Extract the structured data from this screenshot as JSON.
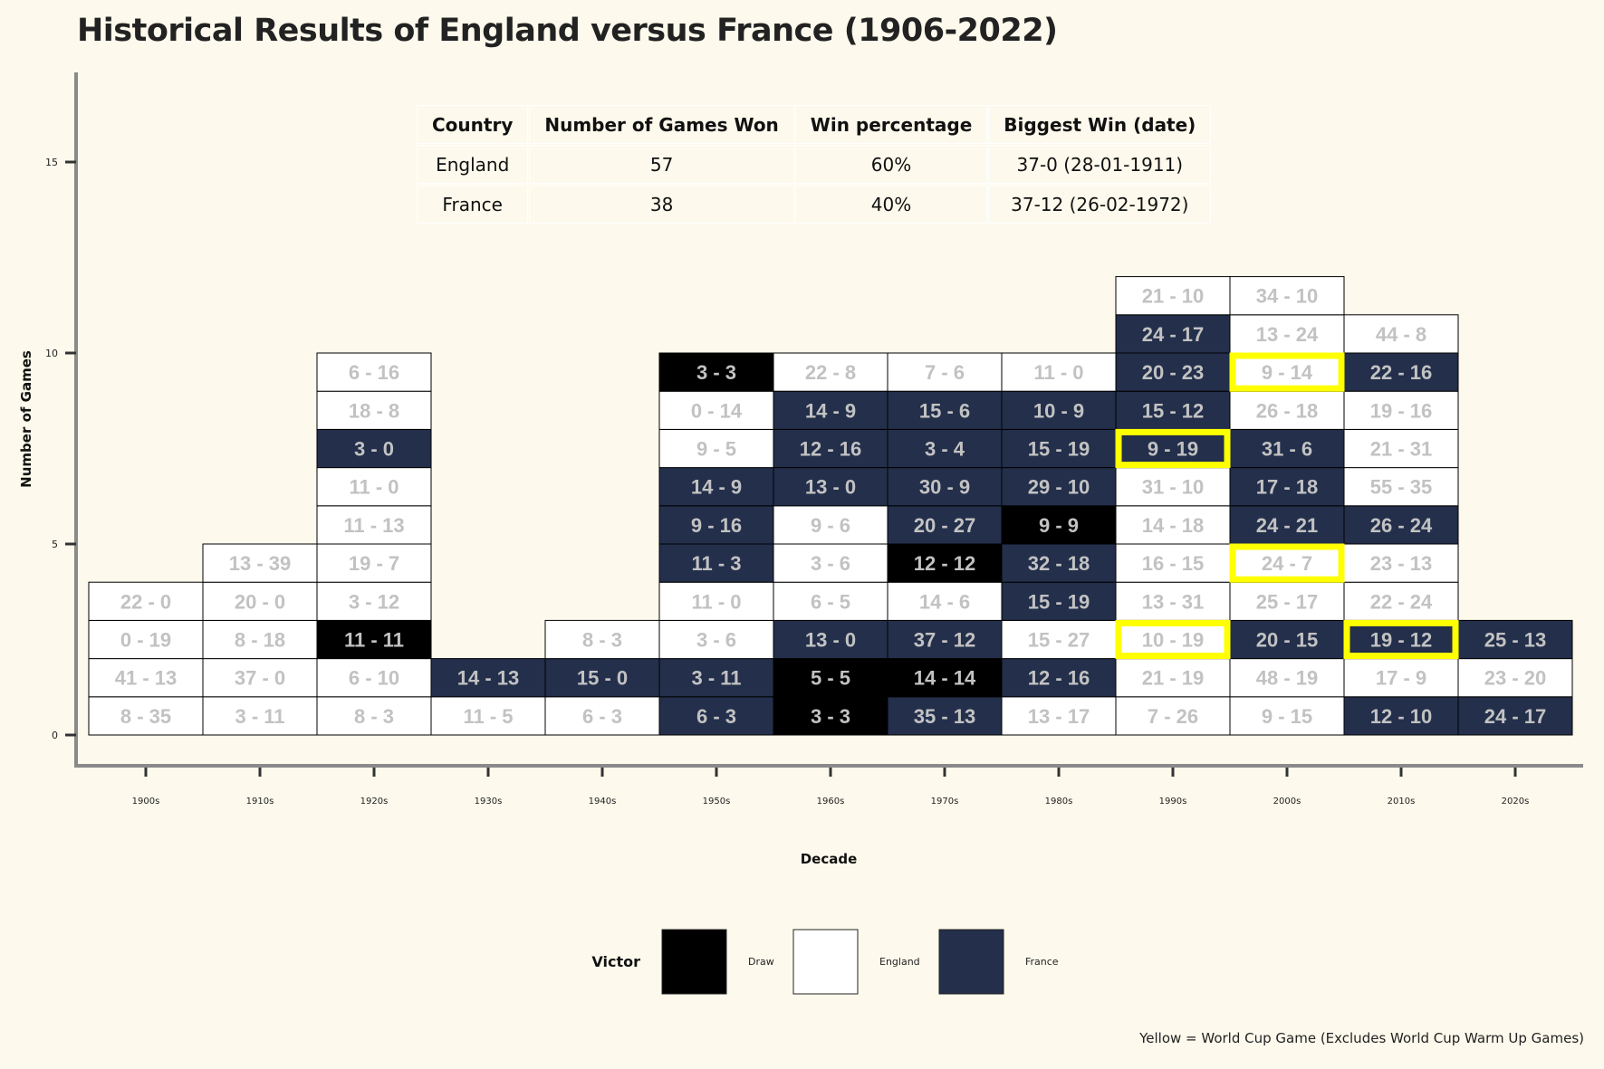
{
  "title": "Historical Results of England versus France (1906-2022)",
  "caption": "Yellow = World Cup Game (Excludes World Cup Warm Up Games)",
  "summary_table": {
    "headers": [
      "Country",
      "Number of Games Won",
      "Win percentage",
      "Biggest Win (date)"
    ],
    "rows": [
      [
        "England",
        "57",
        "60%",
        "37-0 (28-01-1911)"
      ],
      [
        "France",
        "38",
        "40%",
        "37-12 (26-02-1972)"
      ]
    ]
  },
  "chart_data": {
    "type": "stacked tile chart",
    "xlabel": "Decade",
    "ylabel": "Number of Games",
    "y_ticks": [
      0,
      5,
      10,
      15
    ],
    "ylim": [
      0,
      18
    ],
    "categories": [
      "1900s",
      "1910s",
      "1920s",
      "1930s",
      "1940s",
      "1950s",
      "1960s",
      "1970s",
      "1980s",
      "1990s",
      "2000s",
      "2010s",
      "2020s"
    ],
    "colors": {
      "Draw": "#000000",
      "England": "#ffffff",
      "France": "#232f4b",
      "world_cup_outline": "#ffff00",
      "label_light": "#c2c2c2",
      "label_dark": "#c2c2c2"
    },
    "legend": {
      "title": "Victor",
      "position": "bottom",
      "entries": [
        "Draw",
        "England",
        "France"
      ]
    },
    "decades": [
      {
        "decade": "1900s",
        "games": [
          {
            "score": "8 - 35",
            "victor": "England",
            "world_cup": false
          },
          {
            "score": "41 - 13",
            "victor": "England",
            "world_cup": false
          },
          {
            "score": "0 - 19",
            "victor": "England",
            "world_cup": false
          },
          {
            "score": "22 - 0",
            "victor": "England",
            "world_cup": false
          }
        ]
      },
      {
        "decade": "1910s",
        "games": [
          {
            "score": "3 - 11",
            "victor": "England",
            "world_cup": false
          },
          {
            "score": "37 - 0",
            "victor": "England",
            "world_cup": false
          },
          {
            "score": "8 - 18",
            "victor": "England",
            "world_cup": false
          },
          {
            "score": "20 - 0",
            "victor": "England",
            "world_cup": false
          },
          {
            "score": "13 - 39",
            "victor": "England",
            "world_cup": false
          }
        ]
      },
      {
        "decade": "1920s",
        "games": [
          {
            "score": "8 - 3",
            "victor": "England",
            "world_cup": false
          },
          {
            "score": "6 - 10",
            "victor": "England",
            "world_cup": false
          },
          {
            "score": "11 - 11",
            "victor": "Draw",
            "world_cup": false
          },
          {
            "score": "3 - 12",
            "victor": "England",
            "world_cup": false
          },
          {
            "score": "19 - 7",
            "victor": "England",
            "world_cup": false
          },
          {
            "score": "11 - 13",
            "victor": "England",
            "world_cup": false
          },
          {
            "score": "11 - 0",
            "victor": "England",
            "world_cup": false
          },
          {
            "score": "3 - 0",
            "victor": "France",
            "world_cup": false
          },
          {
            "score": "18 - 8",
            "victor": "England",
            "world_cup": false
          },
          {
            "score": "6 - 16",
            "victor": "England",
            "world_cup": false
          }
        ]
      },
      {
        "decade": "1930s",
        "games": [
          {
            "score": "11 - 5",
            "victor": "England",
            "world_cup": false
          },
          {
            "score": "14 - 13",
            "victor": "France",
            "world_cup": false
          }
        ]
      },
      {
        "decade": "1940s",
        "games": [
          {
            "score": "6 - 3",
            "victor": "England",
            "world_cup": false
          },
          {
            "score": "15 - 0",
            "victor": "France",
            "world_cup": false
          },
          {
            "score": "8 - 3",
            "victor": "England",
            "world_cup": false
          }
        ]
      },
      {
        "decade": "1950s",
        "games": [
          {
            "score": "6 - 3",
            "victor": "France",
            "world_cup": false
          },
          {
            "score": "3 - 11",
            "victor": "France",
            "world_cup": false
          },
          {
            "score": "3 - 6",
            "victor": "England",
            "world_cup": false
          },
          {
            "score": "11 - 0",
            "victor": "England",
            "world_cup": false
          },
          {
            "score": "11 - 3",
            "victor": "France",
            "world_cup": false
          },
          {
            "score": "9 - 16",
            "victor": "France",
            "world_cup": false
          },
          {
            "score": "14 - 9",
            "victor": "France",
            "world_cup": false
          },
          {
            "score": "9 - 5",
            "victor": "England",
            "world_cup": false
          },
          {
            "score": "0 - 14",
            "victor": "England",
            "world_cup": false
          },
          {
            "score": "3 - 3",
            "victor": "Draw",
            "world_cup": false
          }
        ]
      },
      {
        "decade": "1960s",
        "games": [
          {
            "score": "3 - 3",
            "victor": "Draw",
            "world_cup": false
          },
          {
            "score": "5 - 5",
            "victor": "Draw",
            "world_cup": false
          },
          {
            "score": "13 - 0",
            "victor": "France",
            "world_cup": false
          },
          {
            "score": "6 - 5",
            "victor": "England",
            "world_cup": false
          },
          {
            "score": "3 - 6",
            "victor": "England",
            "world_cup": false
          },
          {
            "score": "9 - 6",
            "victor": "England",
            "world_cup": false
          },
          {
            "score": "13 - 0",
            "victor": "France",
            "world_cup": false
          },
          {
            "score": "12 - 16",
            "victor": "France",
            "world_cup": false
          },
          {
            "score": "14 - 9",
            "victor": "France",
            "world_cup": false
          },
          {
            "score": "22 - 8",
            "victor": "England",
            "world_cup": false
          }
        ]
      },
      {
        "decade": "1970s",
        "games": [
          {
            "score": "35 - 13",
            "victor": "France",
            "world_cup": false
          },
          {
            "score": "14 - 14",
            "victor": "Draw",
            "world_cup": false
          },
          {
            "score": "37 - 12",
            "victor": "France",
            "world_cup": false
          },
          {
            "score": "14 - 6",
            "victor": "England",
            "world_cup": false
          },
          {
            "score": "12 - 12",
            "victor": "Draw",
            "world_cup": false
          },
          {
            "score": "20 - 27",
            "victor": "France",
            "world_cup": false
          },
          {
            "score": "30 - 9",
            "victor": "France",
            "world_cup": false
          },
          {
            "score": "3 - 4",
            "victor": "France",
            "world_cup": false
          },
          {
            "score": "15 - 6",
            "victor": "France",
            "world_cup": false
          },
          {
            "score": "7 - 6",
            "victor": "England",
            "world_cup": false
          }
        ]
      },
      {
        "decade": "1980s",
        "games": [
          {
            "score": "13 - 17",
            "victor": "England",
            "world_cup": false
          },
          {
            "score": "12 - 16",
            "victor": "France",
            "world_cup": false
          },
          {
            "score": "15 - 27",
            "victor": "England",
            "world_cup": false
          },
          {
            "score": "15 - 19",
            "victor": "France",
            "world_cup": false
          },
          {
            "score": "32 - 18",
            "victor": "France",
            "world_cup": false
          },
          {
            "score": "9 - 9",
            "victor": "Draw",
            "world_cup": false
          },
          {
            "score": "29 - 10",
            "victor": "France",
            "world_cup": false
          },
          {
            "score": "15 - 19",
            "victor": "France",
            "world_cup": false
          },
          {
            "score": "10 - 9",
            "victor": "France",
            "world_cup": false
          },
          {
            "score": "11 - 0",
            "victor": "England",
            "world_cup": false
          }
        ]
      },
      {
        "decade": "1990s",
        "games": [
          {
            "score": "7 - 26",
            "victor": "England",
            "world_cup": false
          },
          {
            "score": "21 - 19",
            "victor": "England",
            "world_cup": false
          },
          {
            "score": "10 - 19",
            "victor": "England",
            "world_cup": true
          },
          {
            "score": "13 - 31",
            "victor": "England",
            "world_cup": false
          },
          {
            "score": "16 - 15",
            "victor": "England",
            "world_cup": false
          },
          {
            "score": "14 - 18",
            "victor": "England",
            "world_cup": false
          },
          {
            "score": "31 - 10",
            "victor": "England",
            "world_cup": false
          },
          {
            "score": "9 - 19",
            "victor": "France",
            "world_cup": true
          },
          {
            "score": "15 - 12",
            "victor": "France",
            "world_cup": false
          },
          {
            "score": "20 - 23",
            "victor": "France",
            "world_cup": false
          },
          {
            "score": "24 - 17",
            "victor": "France",
            "world_cup": false
          },
          {
            "score": "21 - 10",
            "victor": "England",
            "world_cup": false
          }
        ]
      },
      {
        "decade": "2000s",
        "games": [
          {
            "score": "9 - 15",
            "victor": "England",
            "world_cup": false
          },
          {
            "score": "48 - 19",
            "victor": "England",
            "world_cup": false
          },
          {
            "score": "20 - 15",
            "victor": "France",
            "world_cup": false
          },
          {
            "score": "25 - 17",
            "victor": "England",
            "world_cup": false
          },
          {
            "score": "24 - 7",
            "victor": "England",
            "world_cup": true
          },
          {
            "score": "24 - 21",
            "victor": "France",
            "world_cup": false
          },
          {
            "score": "17 - 18",
            "victor": "France",
            "world_cup": false
          },
          {
            "score": "31 - 6",
            "victor": "France",
            "world_cup": false
          },
          {
            "score": "26 - 18",
            "victor": "England",
            "world_cup": false
          },
          {
            "score": "9 - 14",
            "victor": "England",
            "world_cup": true
          },
          {
            "score": "13 - 24",
            "victor": "England",
            "world_cup": false
          },
          {
            "score": "34 - 10",
            "victor": "England",
            "world_cup": false
          }
        ]
      },
      {
        "decade": "2010s",
        "games": [
          {
            "score": "12 - 10",
            "victor": "France",
            "world_cup": false
          },
          {
            "score": "17 - 9",
            "victor": "England",
            "world_cup": false
          },
          {
            "score": "19 - 12",
            "victor": "France",
            "world_cup": true
          },
          {
            "score": "22 - 24",
            "victor": "England",
            "world_cup": false
          },
          {
            "score": "23 - 13",
            "victor": "England",
            "world_cup": false
          },
          {
            "score": "26 - 24",
            "victor": "France",
            "world_cup": false
          },
          {
            "score": "55 - 35",
            "victor": "England",
            "world_cup": false
          },
          {
            "score": "21 - 31",
            "victor": "England",
            "world_cup": false
          },
          {
            "score": "19 - 16",
            "victor": "England",
            "world_cup": false
          },
          {
            "score": "22 - 16",
            "victor": "France",
            "world_cup": false
          },
          {
            "score": "44 - 8",
            "victor": "England",
            "world_cup": false
          }
        ]
      },
      {
        "decade": "2020s",
        "games": [
          {
            "score": "24 - 17",
            "victor": "France",
            "world_cup": false
          },
          {
            "score": "23 - 20",
            "victor": "England",
            "world_cup": false
          },
          {
            "score": "25 - 13",
            "victor": "France",
            "world_cup": false
          }
        ]
      }
    ]
  }
}
